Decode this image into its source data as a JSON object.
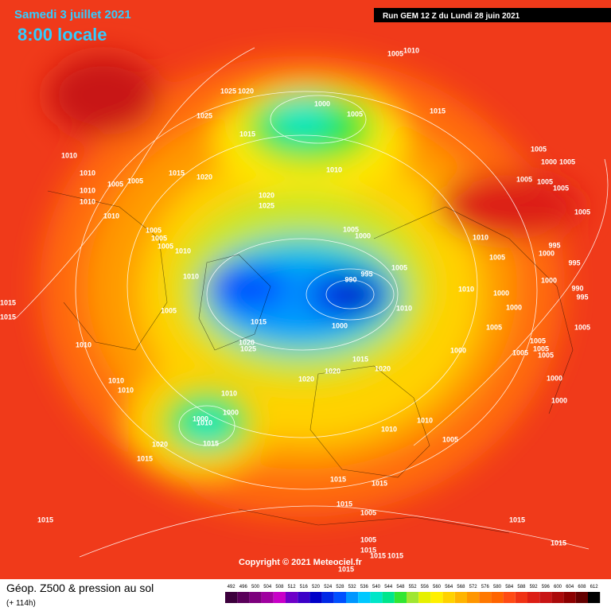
{
  "header": {
    "date": "Samedi 3 juillet 2021",
    "time": "8:00 locale",
    "run": "Run GEM 12 Z du Lundi 28 juin 2021"
  },
  "map": {
    "copyright": "Copyright © 2021 Meteociel.fr",
    "isobar_labels": [
      1005,
      1010,
      1025,
      1020,
      1000,
      1005,
      1025,
      1015,
      1015,
      1010,
      1005,
      1000,
      1005,
      1010,
      1010,
      1015,
      1020,
      1005,
      1005,
      1005,
      1005,
      1005,
      1010,
      1020,
      1025,
      1010,
      1010,
      1005,
      1005,
      1000,
      1005,
      1005,
      1005,
      1010,
      1010,
      995,
      1000,
      1005,
      995,
      1005,
      995,
      990,
      1010,
      1000,
      990,
      995,
      1010,
      1000,
      1015,
      1010,
      1000,
      1005,
      1015,
      1015,
      1000,
      1005,
      1005,
      1020,
      1025,
      1010,
      1005,
      1005,
      1000,
      1005,
      1005,
      1015,
      1020,
      1020,
      1020,
      1010,
      1000,
      1010,
      1010,
      1000,
      1000,
      1000,
      1010,
      1010,
      1010,
      1005,
      1015,
      1020,
      1015,
      1015,
      1015,
      1015,
      1005,
      1015,
      1015,
      1005,
      1015,
      1015,
      1015,
      1015,
      1015
    ]
  },
  "footer": {
    "title": "Géop. Z500 & pression au sol",
    "lead": "(+ 114h)"
  },
  "legend": {
    "values": [
      492,
      496,
      500,
      504,
      508,
      512,
      516,
      520,
      524,
      528,
      532,
      536,
      540,
      544,
      548,
      552,
      556,
      560,
      564,
      568,
      572,
      576,
      580,
      584,
      588,
      592,
      596,
      600,
      604,
      608,
      612
    ],
    "colors": [
      "#3c003c",
      "#5a005a",
      "#7d007d",
      "#a000a0",
      "#c800c8",
      "#6e00c8",
      "#3c00c8",
      "#0000c8",
      "#0028e6",
      "#0050ff",
      "#0096ff",
      "#00c8ff",
      "#00e6c8",
      "#00e68c",
      "#32e632",
      "#a0e632",
      "#e6f000",
      "#fff000",
      "#ffd200",
      "#ffb400",
      "#ff9600",
      "#ff7800",
      "#ff6400",
      "#ff4b14",
      "#f03214",
      "#dc1e14",
      "#c81414",
      "#aa0a0a",
      "#8c0000",
      "#640000",
      "#000000"
    ]
  }
}
